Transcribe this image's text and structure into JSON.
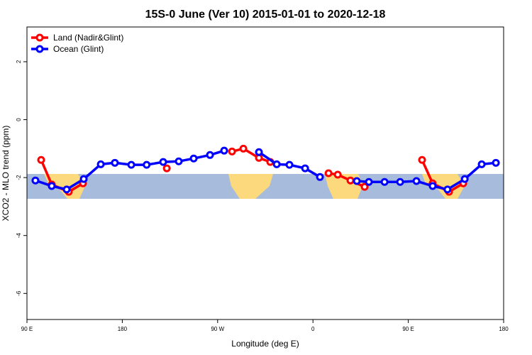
{
  "chart_data": {
    "type": "line",
    "title": "15S-0 June (Ver 10)   2015-01-01 to 2020-12-18",
    "xlabel": "Longitude (deg E)",
    "ylabel": "XCO2 - MLO trend (ppm)",
    "xlim": [
      90,
      540
    ],
    "ylim": [
      -6.9,
      3.2
    ],
    "xticks": [
      {
        "value": 90,
        "label": "90 E"
      },
      180,
      {
        "value": 270,
        "label": "90 W"
      },
      {
        "value": 360,
        "label": "0"
      },
      {
        "value": 450,
        "label": "90 E"
      },
      {
        "value": 540,
        "label": "180"
      }
    ],
    "yticks": [
      -6,
      -4,
      -2,
      0,
      2
    ],
    "legend": "top-left",
    "series": [
      {
        "name": "Land (Nadir&Glint)",
        "color": "#ff0000",
        "x": [
          103.4,
          113.4,
          129.5,
          142.9,
          180,
          222,
          250,
          283.6,
          294.3,
          309,
          319.7,
          345,
          374.7,
          383.4,
          395.4,
          408.8,
          440,
          463,
          473,
          488.5,
          501.9
        ],
        "values": [
          -1.39,
          -2.24,
          -2.49,
          -2.2,
          null,
          -1.68,
          null,
          -1.1,
          -1.0,
          -1.32,
          -1.46,
          null,
          -1.85,
          -1.9,
          -2.1,
          -2.32,
          null,
          -1.39,
          -2.2,
          -2.49,
          -2.2
        ]
      },
      {
        "name": "Ocean (Glint)",
        "color": "#0000ff",
        "x": [
          98,
          113.4,
          127.5,
          143.6,
          159.7,
          173,
          188.5,
          203,
          218.6,
          233.3,
          247.4,
          262.8,
          276.2,
          292,
          309,
          325.8,
          337.8,
          352.6,
          366.6,
          384,
          401.4,
          412.8,
          427.6,
          442.3,
          457.7,
          473,
          487,
          503.3,
          519.3,
          532.7
        ],
        "values": [
          -2.1,
          -2.29,
          -2.41,
          -2.05,
          -1.54,
          -1.49,
          -1.56,
          -1.56,
          -1.46,
          -1.44,
          -1.34,
          -1.22,
          -1.07,
          null,
          -1.12,
          -1.54,
          -1.56,
          -1.68,
          -1.98,
          null,
          -2.12,
          -2.15,
          -2.15,
          -2.15,
          -2.12,
          -2.29,
          -2.41,
          -2.05,
          -1.54,
          -1.49
        ]
      }
    ]
  }
}
